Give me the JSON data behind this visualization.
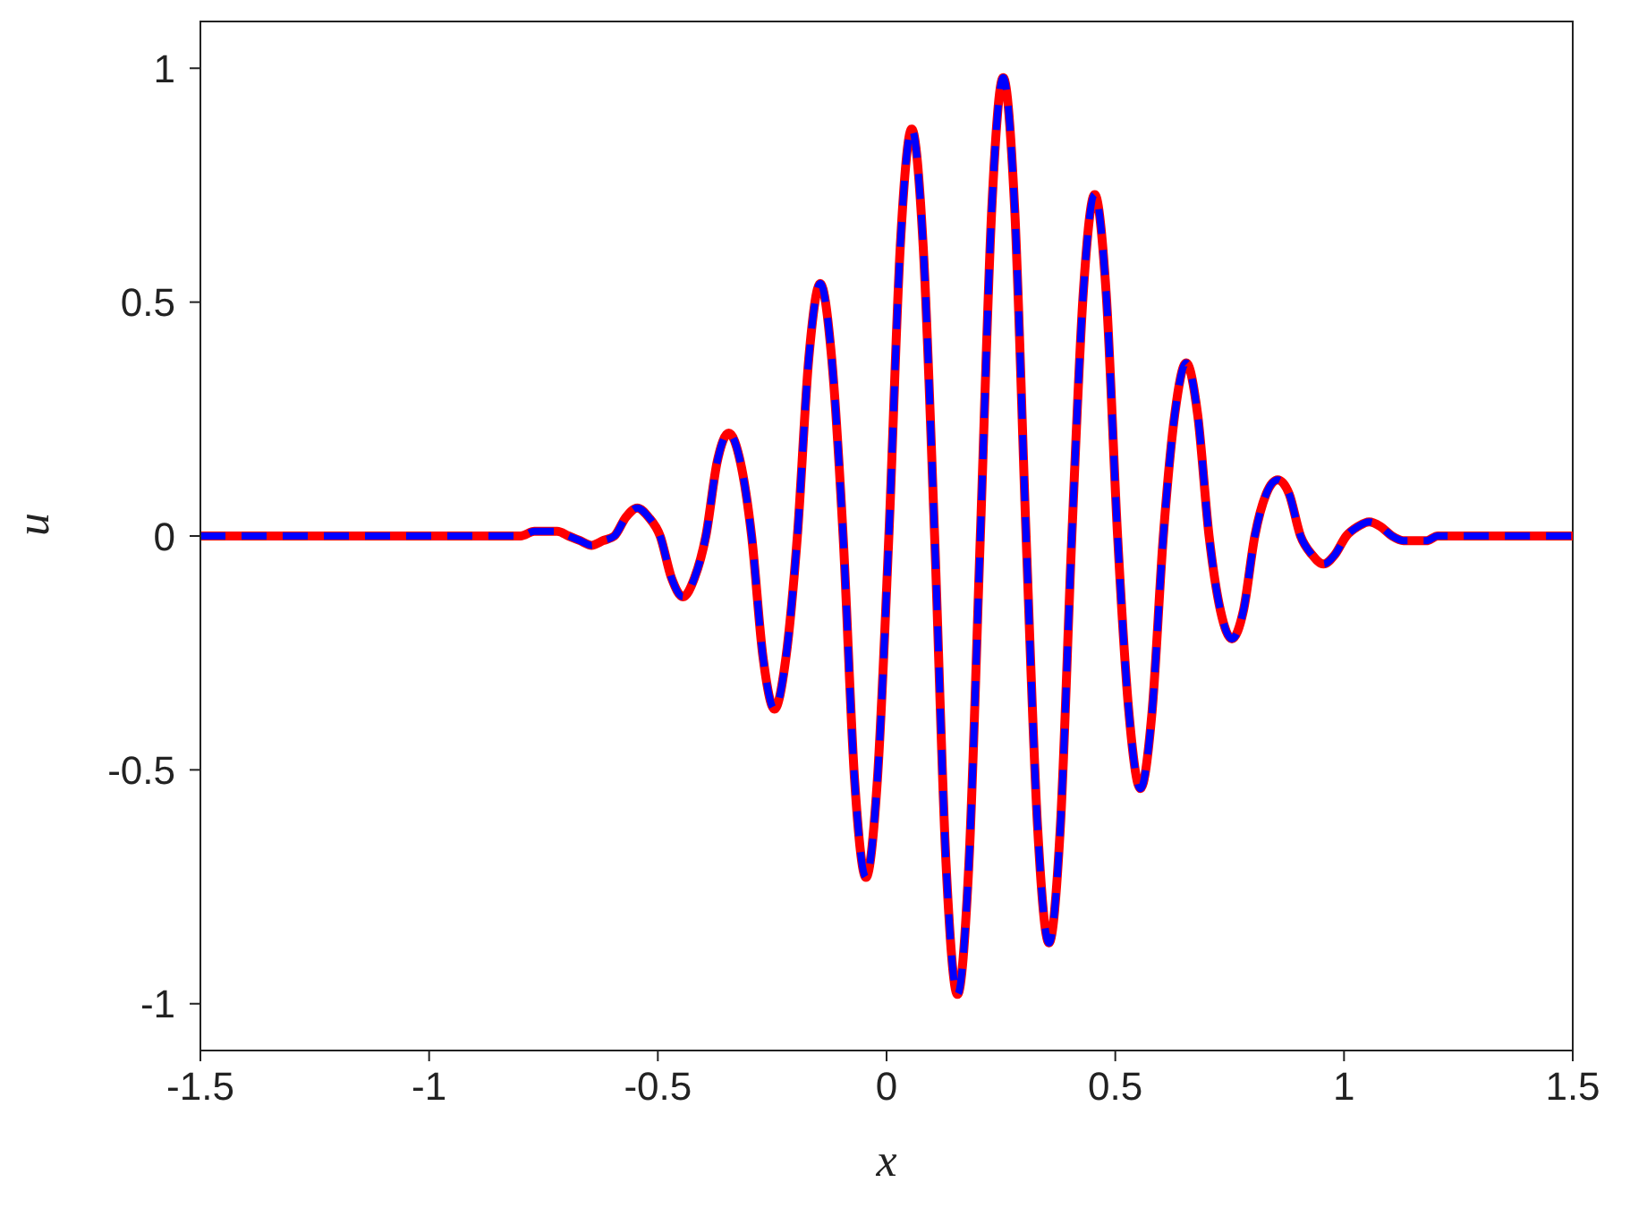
{
  "chart_data": {
    "type": "line",
    "xlabel": "x",
    "ylabel": "u",
    "xlim": [
      -1.5,
      1.5
    ],
    "ylim": [
      -1.1,
      1.1
    ],
    "xticks": [
      -1.5,
      -1,
      -0.5,
      0,
      0.5,
      1,
      1.5
    ],
    "yticks": [
      -1,
      -0.5,
      0,
      0.5,
      1
    ],
    "grid": false,
    "legend": false,
    "marker": "none",
    "x": [
      -1.5,
      -1.0,
      -0.8,
      -0.77,
      -0.745,
      -0.72,
      -0.695,
      -0.67,
      -0.645,
      -0.62,
      -0.595,
      -0.57,
      -0.545,
      -0.52,
      -0.495,
      -0.47,
      -0.445,
      -0.42,
      -0.395,
      -0.37,
      -0.345,
      -0.32,
      -0.295,
      -0.27,
      -0.245,
      -0.22,
      -0.195,
      -0.17,
      -0.145,
      -0.12,
      -0.095,
      -0.07,
      -0.045,
      -0.02,
      0.005,
      0.03,
      0.055,
      0.08,
      0.105,
      0.13,
      0.155,
      0.18,
      0.205,
      0.23,
      0.255,
      0.28,
      0.305,
      0.33,
      0.355,
      0.38,
      0.405,
      0.43,
      0.455,
      0.48,
      0.505,
      0.53,
      0.555,
      0.58,
      0.605,
      0.63,
      0.655,
      0.68,
      0.705,
      0.73,
      0.755,
      0.78,
      0.805,
      0.83,
      0.855,
      0.88,
      0.905,
      0.93,
      0.955,
      0.98,
      1.005,
      1.03,
      1.055,
      1.08,
      1.105,
      1.13,
      1.155,
      1.18,
      1.205,
      1.3,
      1.5
    ],
    "series": [
      {
        "color": "#ff0000",
        "line_style": "solid",
        "values": [
          0,
          0,
          0,
          0.01,
          0.01,
          0.01,
          0,
          -0.01,
          -0.02,
          -0.01,
          0,
          0.04,
          0.06,
          0.04,
          0,
          -0.09,
          -0.13,
          -0.09,
          0,
          0.16,
          0.22,
          0.16,
          0,
          -0.26,
          -0.37,
          -0.26,
          0,
          0.38,
          0.54,
          0.38,
          0,
          -0.52,
          -0.73,
          -0.52,
          0,
          0.62,
          0.87,
          0.62,
          0,
          -0.7,
          -0.98,
          -0.7,
          0,
          0.7,
          0.98,
          0.7,
          0,
          -0.62,
          -0.87,
          -0.62,
          0,
          0.52,
          0.73,
          0.52,
          0,
          -0.38,
          -0.54,
          -0.38,
          0,
          0.26,
          0.37,
          0.26,
          0,
          -0.16,
          -0.22,
          -0.16,
          0,
          0.09,
          0.12,
          0.09,
          0,
          -0.04,
          -0.06,
          -0.04,
          0,
          0.02,
          0.03,
          0.02,
          0,
          -0.01,
          -0.01,
          -0.01,
          0,
          0,
          0
        ]
      },
      {
        "color": "#0000ff",
        "line_style": "dashed",
        "values": [
          0,
          0,
          0,
          0.01,
          0.01,
          0.01,
          0,
          -0.01,
          -0.02,
          -0.01,
          0,
          0.04,
          0.06,
          0.04,
          0,
          -0.09,
          -0.13,
          -0.09,
          0,
          0.16,
          0.22,
          0.16,
          0,
          -0.26,
          -0.37,
          -0.26,
          0,
          0.38,
          0.54,
          0.38,
          0,
          -0.52,
          -0.73,
          -0.52,
          0,
          0.62,
          0.87,
          0.62,
          0,
          -0.7,
          -0.98,
          -0.7,
          0,
          0.7,
          0.98,
          0.7,
          0,
          -0.62,
          -0.87,
          -0.62,
          0,
          0.52,
          0.73,
          0.52,
          0,
          -0.38,
          -0.54,
          -0.38,
          0,
          0.26,
          0.37,
          0.26,
          0,
          -0.16,
          -0.22,
          -0.16,
          0,
          0.09,
          0.12,
          0.09,
          0,
          -0.04,
          -0.06,
          -0.04,
          0,
          0.02,
          0.03,
          0.02,
          0,
          -0.01,
          -0.01,
          -0.01,
          0,
          0,
          0
        ]
      }
    ]
  }
}
